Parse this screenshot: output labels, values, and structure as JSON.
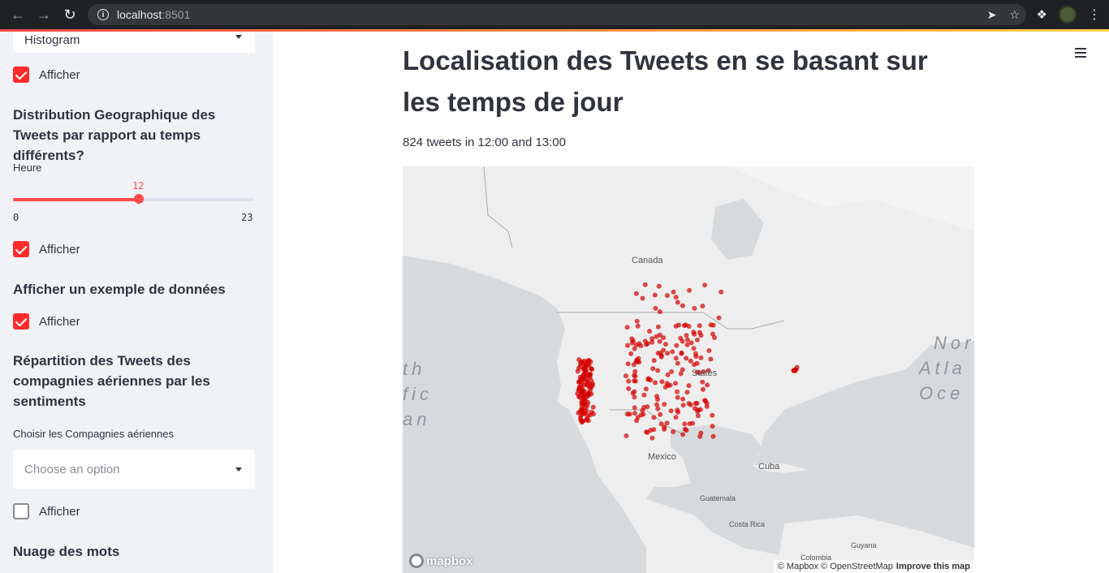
{
  "browser": {
    "url_host": "localhost",
    "url_port": ":8501",
    "info_icon": "info-icon",
    "colors": {
      "chrome_bg": "#202124",
      "omnibox_bg": "#35363a"
    }
  },
  "sidebar": {
    "histogram_select_value": "Histogram",
    "check1_label": "Afficher",
    "geo_heading": "Distribution Geographique des Tweets par rapport au temps différents?",
    "slider_label": "Heure",
    "slider_value": "12",
    "slider_min": "0",
    "slider_max": "23",
    "slider_fraction": 0.5217,
    "check2_label": "Afficher",
    "example_heading": "Afficher un exemple de données",
    "check3_label": "Afficher",
    "sentiment_heading": "Répartition des Tweets des compagnies aériennes par les sentiments",
    "airlines_label": "Choisir les Compagnies aériennes",
    "airlines_placeholder": "Choose an option",
    "check4_label": "Afficher",
    "wordcloud_heading": "Nuage des mots"
  },
  "main": {
    "title": "Localisation des Tweets en se basant sur les temps de jour",
    "caption": "824 tweets in 12:00 and 13:00",
    "map": {
      "labels": {
        "canada": "Canada",
        "states": "States",
        "mexico": "Mexico",
        "cuba": "Cuba",
        "guatemala": "Guatemala",
        "costa_rica": "Costa Rica",
        "guyana": "Guyana",
        "colombia": "Colombia"
      },
      "ocean_east_1": "Nor",
      "ocean_east_2": "Atla",
      "ocean_east_3": "Oce",
      "ocean_west_1": "th",
      "ocean_west_2": "fic",
      "ocean_west_3": "an",
      "logo": "mapbox",
      "attribution": "© Mapbox © OpenStreetMap",
      "improve": "Improve this map",
      "point_color": "#d40000"
    }
  }
}
